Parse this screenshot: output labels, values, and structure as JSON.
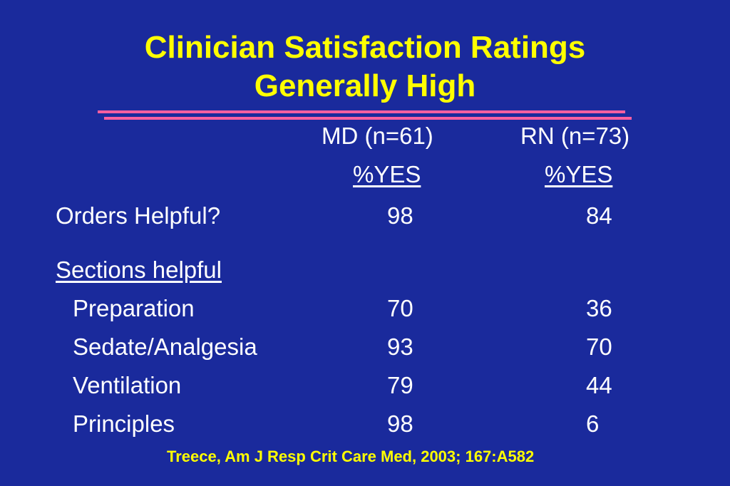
{
  "slide": {
    "title_line1": "Clinician Satisfaction Ratings",
    "title_line2": "Generally High",
    "accent_color": "#ffff00",
    "rule_color": "#ff5fa0",
    "background_color": "#1a2a9c"
  },
  "table": {
    "col1_header": "MD (n=61)",
    "col2_header": "RN (n=73)",
    "col1_subheader": "%YES",
    "col2_subheader": "%YES",
    "orders_label": "Orders Helpful?",
    "orders_md": "98",
    "orders_rn": "84",
    "sections_label": "Sections helpful",
    "rows": [
      {
        "label": "Preparation",
        "md": "70",
        "rn": "36"
      },
      {
        "label": "Sedate/Analgesia",
        "md": "93",
        "rn": "70"
      },
      {
        "label": "Ventilation",
        "md": "79",
        "rn": "44"
      },
      {
        "label": "Principles",
        "md": "98",
        "rn": "6"
      }
    ]
  },
  "citation": "Treece, Am J Resp Crit Care Med, 2003; 167:A582"
}
